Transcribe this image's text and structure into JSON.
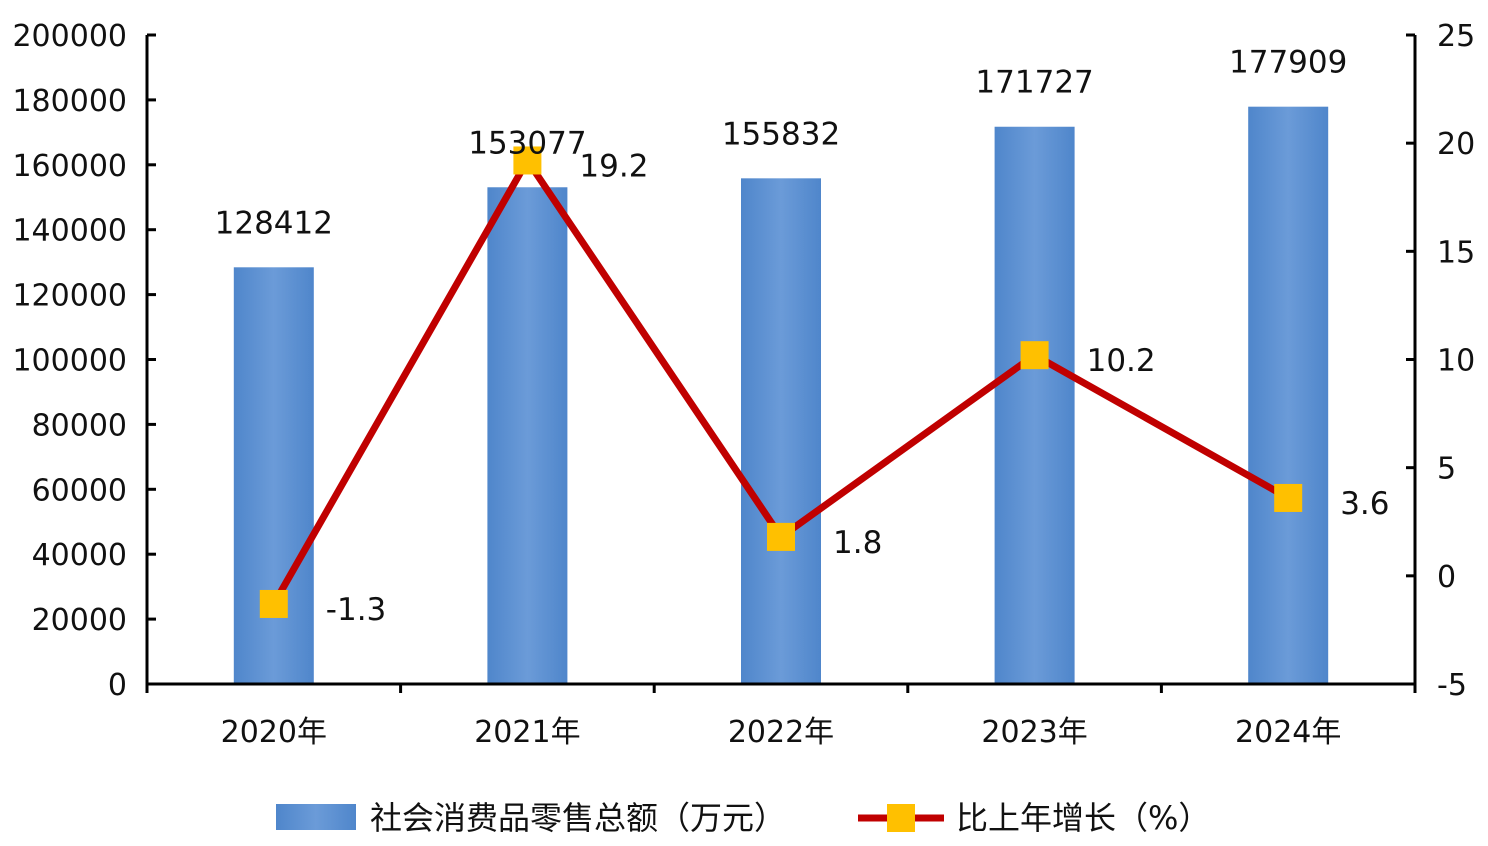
{
  "chart_data": {
    "type": "bar",
    "categories": [
      "2020年",
      "2021年",
      "2022年",
      "2023年",
      "2024年"
    ],
    "series": [
      {
        "name": "社会消费品零售总额（万元）",
        "type": "bar",
        "axis": "left",
        "values": [
          128412,
          153077,
          155832,
          171727,
          177909
        ],
        "color": "#5b8fd0"
      },
      {
        "name": "比上年增长（%）",
        "type": "line",
        "axis": "right",
        "values": [
          -1.3,
          19.2,
          1.8,
          10.2,
          3.6
        ],
        "line_color": "#c00000",
        "marker_color": "#ffc000"
      }
    ],
    "y_left": {
      "ylim": [
        0,
        200000
      ],
      "ticks": [
        "0",
        "20000",
        "40000",
        "60000",
        "80000",
        "100000",
        "120000",
        "140000",
        "160000",
        "180000",
        "200000"
      ]
    },
    "y_right": {
      "ylim": [
        -5,
        25
      ],
      "ticks": [
        "-5",
        "0",
        "5",
        "10",
        "15",
        "20",
        "25"
      ]
    },
    "bar_labels": [
      "128412",
      "153077",
      "155832",
      "171727",
      "177909"
    ],
    "line_labels": [
      "-1.3",
      "19.2",
      "1.8",
      "10.2",
      "3.6"
    ],
    "grid": false,
    "legend_position": "bottom"
  }
}
